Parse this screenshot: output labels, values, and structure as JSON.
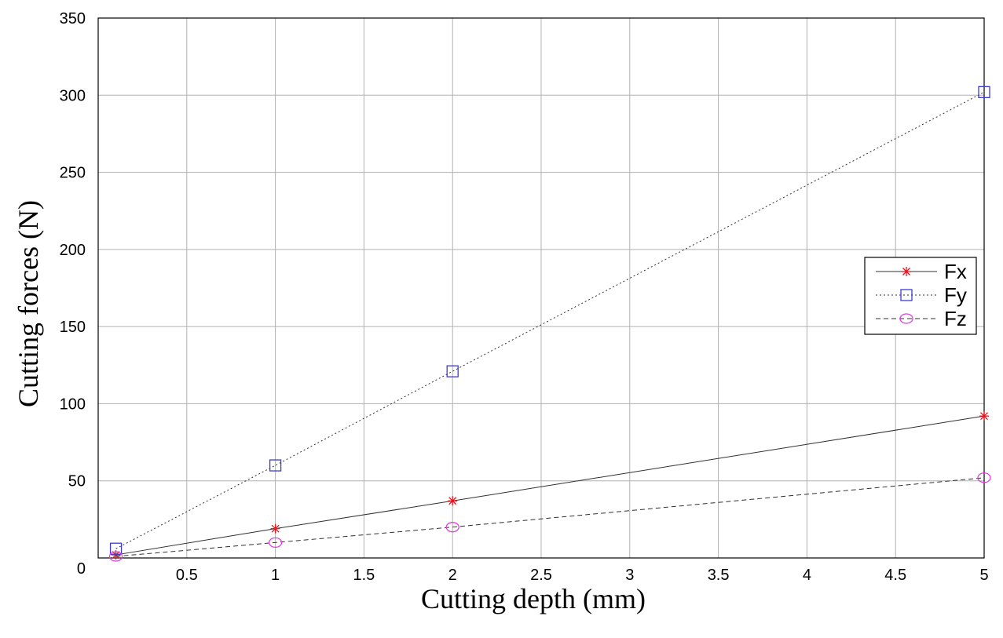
{
  "chart_data": {
    "type": "line",
    "title": "",
    "xlabel": "Cutting depth (mm)",
    "ylabel": "Cutting forces (N)",
    "xlim": [
      0,
      5
    ],
    "ylim": [
      0,
      350
    ],
    "x_ticks": [
      0.5,
      1,
      1.5,
      2,
      2.5,
      3,
      3.5,
      4,
      4.5,
      5
    ],
    "x_tick_labels": [
      "0.5",
      "1",
      "1.5",
      "2",
      "2.5",
      "3",
      "3.5",
      "4",
      "4.5",
      "5"
    ],
    "y_ticks": [
      0,
      50,
      100,
      150,
      200,
      250,
      300,
      350
    ],
    "y_tick_labels": [
      "0",
      "50",
      "100",
      "150",
      "200",
      "250",
      "300",
      "350"
    ],
    "grid": true,
    "legend_position": "right",
    "series": [
      {
        "name": "Fx",
        "x": [
          0.1,
          1,
          2,
          5
        ],
        "y": [
          2,
          19,
          37,
          92
        ],
        "color": "#e8141e",
        "marker": "asterisk",
        "line": "solid",
        "line_color": "#303030"
      },
      {
        "name": "Fy",
        "x": [
          0.1,
          1,
          2,
          5
        ],
        "y": [
          6,
          60,
          121,
          302
        ],
        "color": "#3a3ad6",
        "marker": "square",
        "line": "dotted",
        "line_color": "#303030"
      },
      {
        "name": "Fz",
        "x": [
          0.1,
          1,
          2,
          5
        ],
        "y": [
          1,
          10,
          20,
          52
        ],
        "color": "#e040e0",
        "marker": "circle",
        "line": "dashed",
        "line_color": "#303030"
      }
    ]
  }
}
